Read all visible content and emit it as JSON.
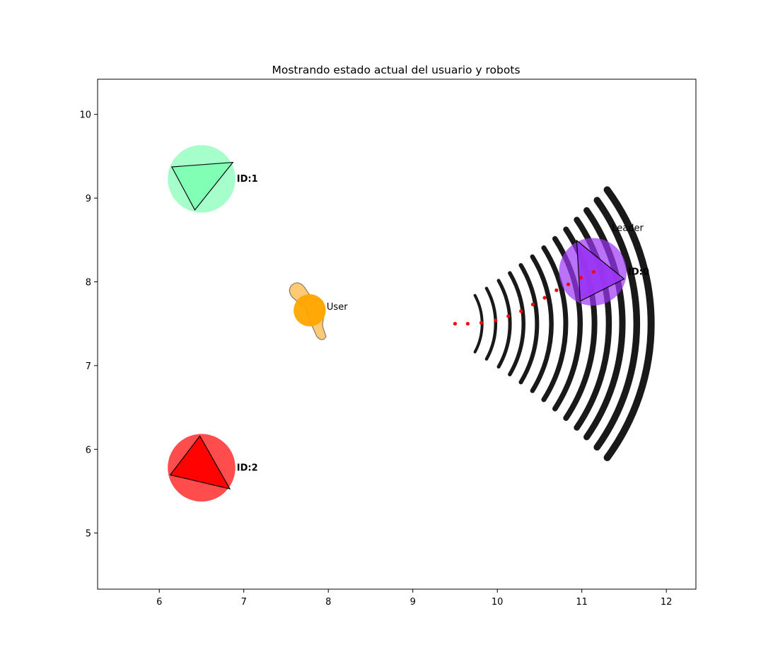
{
  "chart_data": {
    "type": "scatter",
    "title": "Mostrando estado actual del usuario y robots",
    "xlabel": "",
    "ylabel": "",
    "xlim": [
      5.27,
      12.35
    ],
    "ylim": [
      4.33,
      10.42
    ],
    "xticks": [
      6,
      7,
      8,
      9,
      10,
      11,
      12
    ],
    "yticks": [
      5,
      6,
      7,
      8,
      9,
      10
    ],
    "grid": false,
    "robots": [
      {
        "label": "ID:0",
        "extra_label": "Leader",
        "x": 11.13,
        "y": 8.12,
        "radius": 0.4,
        "color": "#9b36f5",
        "heading_deg": 117
      },
      {
        "label": "ID:1",
        "x": 6.5,
        "y": 9.23,
        "radius": 0.4,
        "color": "#80ffb4",
        "heading_deg": 28
      },
      {
        "label": "ID:2",
        "x": 6.5,
        "y": 5.78,
        "radius": 0.4,
        "color": "#ff0000",
        "heading_deg": -37
      }
    ],
    "user": {
      "label": "User",
      "x": 7.78,
      "y": 7.66,
      "color": "#ffa500"
    },
    "path_points": {
      "x": [
        9.5,
        9.65,
        9.81,
        9.98,
        10.13,
        10.28,
        10.42,
        10.56,
        10.7,
        10.84,
        10.99,
        11.14
      ],
      "y": [
        7.5,
        7.5,
        7.51,
        7.54,
        7.59,
        7.65,
        7.73,
        7.81,
        7.9,
        7.97,
        8.05,
        8.12
      ],
      "color": "#ff0000"
    },
    "sensor_arcs": {
      "center_x": 9.1,
      "center_y": 7.5,
      "radii": [
        0.72,
        0.88,
        1.05,
        1.21,
        1.37,
        1.54,
        1.71,
        1.88,
        2.05,
        2.22,
        2.38,
        2.55,
        2.72
      ],
      "color": "#000000"
    }
  }
}
